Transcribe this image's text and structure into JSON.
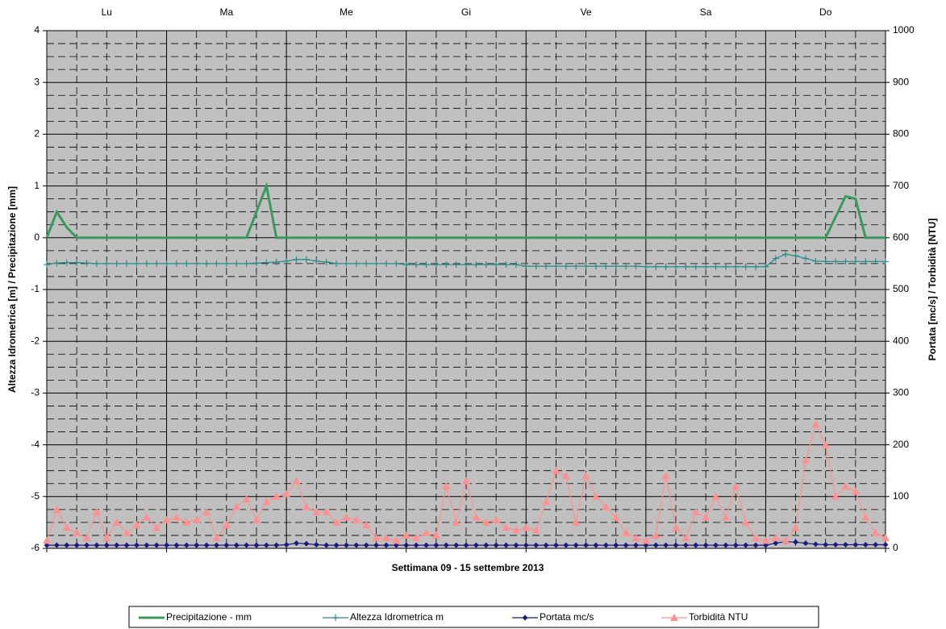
{
  "chart_data": {
    "type": "line",
    "xlabel": "Settimana    09 - 15 settembre 2013",
    "ylabel": "Altezza Idrometrica [m] / Precipitazione [mm]",
    "y2label": "Portata [mc/s] / Torbidità [NTU]",
    "categories": [
      "Lu",
      "Ma",
      "Me",
      "Gi",
      "Ve",
      "Sa",
      "Do"
    ],
    "xlim": [
      0,
      168
    ],
    "xticks": [
      0,
      24,
      48,
      72,
      96,
      120,
      144,
      168
    ],
    "ylim": [
      -6,
      4
    ],
    "yticks": [
      -6,
      -5,
      -4,
      -3,
      -2,
      -1,
      0,
      1,
      2,
      3,
      4
    ],
    "y2lim": [
      0,
      1000
    ],
    "y2ticks": [
      0,
      100,
      200,
      300,
      400,
      500,
      600,
      700,
      800,
      900,
      1000
    ],
    "grid": true,
    "legend": "bottom",
    "x": [
      0,
      2,
      4,
      6,
      8,
      10,
      12,
      14,
      16,
      18,
      20,
      22,
      24,
      26,
      28,
      30,
      32,
      34,
      36,
      38,
      40,
      42,
      44,
      46,
      48,
      50,
      52,
      54,
      56,
      58,
      60,
      62,
      64,
      66,
      68,
      70,
      72,
      74,
      76,
      78,
      80,
      82,
      84,
      86,
      88,
      90,
      92,
      94,
      96,
      98,
      100,
      102,
      104,
      106,
      108,
      110,
      112,
      114,
      116,
      118,
      120,
      122,
      124,
      126,
      128,
      130,
      132,
      134,
      136,
      138,
      140,
      142,
      144,
      146,
      148,
      150,
      152,
      154,
      156,
      158,
      160,
      162,
      164,
      166,
      168
    ],
    "series": [
      {
        "name": "Precipitazione - mm",
        "color": "#3a9a5c",
        "marker": "none",
        "axis": "y",
        "values": [
          0,
          0.5,
          0.2,
          0,
          0,
          0,
          0,
          0,
          0,
          0,
          0,
          0,
          0,
          0,
          0,
          0,
          0,
          0,
          0,
          0,
          0,
          0.5,
          1.0,
          0,
          0,
          0,
          0,
          0,
          0,
          0,
          0,
          0,
          0,
          0,
          0,
          0,
          0,
          0,
          0,
          0,
          0,
          0,
          0,
          0,
          0,
          0,
          0,
          0,
          0,
          0,
          0,
          0,
          0,
          0,
          0,
          0,
          0,
          0,
          0,
          0,
          0,
          0,
          0,
          0,
          0,
          0,
          0,
          0,
          0,
          0,
          0,
          0,
          0,
          0,
          0,
          0,
          0,
          0,
          0,
          0.4,
          0.8,
          0.75,
          0,
          0,
          0
        ]
      },
      {
        "name": "Altezza Idrometrica m",
        "color": "#2a8a8a",
        "marker": "plus",
        "axis": "y",
        "values": [
          -0.52,
          -0.49,
          -0.48,
          -0.48,
          -0.49,
          -0.5,
          -0.5,
          -0.5,
          -0.5,
          -0.5,
          -0.5,
          -0.5,
          -0.5,
          -0.5,
          -0.5,
          -0.5,
          -0.5,
          -0.5,
          -0.5,
          -0.5,
          -0.5,
          -0.49,
          -0.48,
          -0.47,
          -0.45,
          -0.42,
          -0.42,
          -0.45,
          -0.47,
          -0.5,
          -0.5,
          -0.5,
          -0.5,
          -0.5,
          -0.5,
          -0.5,
          -0.52,
          -0.52,
          -0.52,
          -0.52,
          -0.52,
          -0.52,
          -0.52,
          -0.52,
          -0.52,
          -0.52,
          -0.52,
          -0.52,
          -0.55,
          -0.55,
          -0.55,
          -0.55,
          -0.55,
          -0.55,
          -0.55,
          -0.55,
          -0.55,
          -0.55,
          -0.55,
          -0.55,
          -0.56,
          -0.56,
          -0.56,
          -0.56,
          -0.56,
          -0.56,
          -0.56,
          -0.56,
          -0.56,
          -0.56,
          -0.56,
          -0.56,
          -0.56,
          -0.4,
          -0.32,
          -0.35,
          -0.4,
          -0.45,
          -0.46,
          -0.46,
          -0.46,
          -0.46,
          -0.46,
          -0.46,
          -0.46
        ]
      },
      {
        "name": "Portata mc/s",
        "color": "#1a1a80",
        "marker": "diamond",
        "axis": "y2",
        "values": [
          6,
          6,
          6,
          6,
          6,
          6,
          6,
          6,
          6,
          6,
          6,
          6,
          6,
          6,
          6,
          6,
          6,
          6,
          6,
          6,
          6,
          6,
          6,
          6,
          7,
          10,
          9,
          7,
          6,
          6,
          6,
          6,
          6,
          6,
          6,
          6,
          6,
          6,
          6,
          6,
          6,
          6,
          6,
          6,
          6,
          6,
          6,
          6,
          6,
          6,
          6,
          6,
          6,
          6,
          6,
          6,
          6,
          6,
          6,
          6,
          6,
          6,
          6,
          6,
          6,
          6,
          6,
          6,
          6,
          6,
          6,
          6,
          6,
          10,
          13,
          12,
          10,
          8,
          7,
          7,
          7,
          7,
          7,
          7,
          7
        ]
      },
      {
        "name": "Torbidità NTU",
        "color": "#ff9090",
        "marker": "triangle",
        "axis": "y2",
        "values": [
          15,
          75,
          40,
          30,
          20,
          70,
          20,
          50,
          30,
          45,
          60,
          40,
          55,
          60,
          50,
          55,
          70,
          20,
          45,
          80,
          95,
          55,
          90,
          100,
          105,
          130,
          80,
          70,
          70,
          50,
          60,
          55,
          45,
          20,
          20,
          15,
          25,
          20,
          30,
          25,
          120,
          50,
          130,
          60,
          50,
          55,
          40,
          35,
          40,
          35,
          90,
          150,
          140,
          50,
          140,
          100,
          80,
          60,
          30,
          20,
          15,
          25,
          140,
          40,
          20,
          70,
          60,
          100,
          60,
          120,
          50,
          20,
          15,
          20,
          15,
          40,
          170,
          240,
          200,
          100,
          120,
          110,
          60,
          30,
          20
        ]
      }
    ]
  }
}
